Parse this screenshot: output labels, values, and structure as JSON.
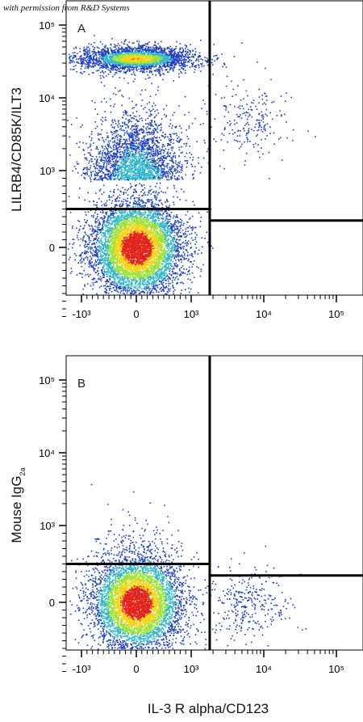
{
  "credit": "with permission from R&D Systems",
  "colors": {
    "low": "#1f3fbf",
    "mid": "#2fb7c9",
    "midhigh": "#9be23a",
    "high": "#f5d416",
    "peak": "#e0241b",
    "gate": "#000000"
  },
  "chart_data": [
    {
      "type": "scatter",
      "panel": "A",
      "xlabel": "IL-3 R alpha/CD123",
      "ylabel": "LILRB4/CD85K/ILT3",
      "x_scale": "biexponential",
      "y_scale": "biexponential",
      "x_ticks": [
        "-10³",
        "0",
        "10³",
        "10⁴",
        "10⁵"
      ],
      "y_ticks": [
        "10⁵",
        "10⁴",
        "10³",
        "0"
      ],
      "populations": [
        {
          "center": [
            0,
            35000
          ],
          "density": "high",
          "count": 2600
        },
        {
          "center": [
            0,
            1200
          ],
          "density": "low",
          "count": 2200
        },
        {
          "center": [
            0,
            0
          ],
          "density": "peak",
          "count": 6500
        },
        {
          "center": [
            6000,
            5000
          ],
          "density": "sparse",
          "count": 220
        }
      ],
      "gates": {
        "x_divider": 1800,
        "y_left": 500,
        "y_right": 350
      }
    },
    {
      "type": "scatter",
      "panel": "B",
      "xlabel": "IL-3 R alpha/CD123",
      "ylabel": "Mouse IgG2a",
      "x_scale": "biexponential",
      "y_scale": "biexponential",
      "x_ticks": [
        "-10³",
        "0",
        "10³",
        "10⁴",
        "10⁵"
      ],
      "y_ticks": [
        "10⁵",
        "10⁴",
        "10³",
        "0"
      ],
      "populations": [
        {
          "center": [
            0,
            0
          ],
          "density": "peak",
          "count": 5500
        },
        {
          "center": [
            6000,
            0
          ],
          "density": "sparse",
          "count": 320
        },
        {
          "center": [
            0,
            800
          ],
          "density": "sparse",
          "count": 80
        }
      ],
      "gates": {
        "x_divider": 1800,
        "y_left": 500,
        "y_right": 350
      }
    }
  ],
  "panels": [
    {
      "letter": "A",
      "ylabel": "LILRB4/CD85K/ILT3",
      "yparts": {
        "main": "LILRB4/CD85K/ILT3",
        "sub": ""
      }
    },
    {
      "letter": "B",
      "ylabel": "Mouse IgG2a",
      "yparts": {
        "main": "Mouse IgG",
        "sub": "2a"
      }
    }
  ],
  "shared_xlabel": "IL-3 R alpha/CD123"
}
